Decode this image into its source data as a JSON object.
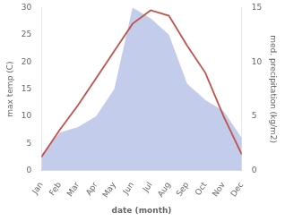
{
  "chart_data": {
    "type": "line",
    "categories": [
      "Jan",
      "Feb",
      "Mar",
      "Apr",
      "May",
      "Jun",
      "Jul",
      "Aug",
      "Sep",
      "Oct",
      "Nov",
      "Dec"
    ],
    "series": [
      {
        "type": "line",
        "color": "#c0524a",
        "values": [
          2.5,
          7.5,
          12.0,
          17.0,
          22.0,
          27.0,
          29.5,
          28.5,
          23.0,
          18.0,
          10.0,
          3.0
        ]
      },
      {
        "type": "area",
        "axis": "y2",
        "color": "#b8c4e8",
        "values": [
          1.5,
          3.5,
          4.0,
          5.0,
          7.5,
          15.0,
          14.0,
          12.5,
          8.0,
          6.5,
          5.5,
          3.0
        ]
      }
    ],
    "xlabel": "date (month)",
    "ylabel": "max temp (C)",
    "y2label": "med. precipitation (kg/m2)",
    "ylim": [
      0,
      30
    ],
    "yticks": [
      0,
      5,
      10,
      15,
      20,
      25,
      30
    ],
    "y2lim": [
      0,
      15
    ],
    "y2ticks": [
      0,
      5,
      10,
      15
    ],
    "grid": false
  }
}
